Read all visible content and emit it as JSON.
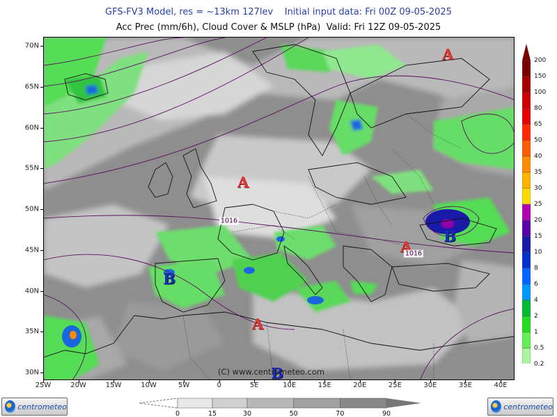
{
  "titles": {
    "line1": "GFS-FV3 Model, res = ~13km 127lev    Initial input data: Fri 00Z 09-05-2025",
    "line2": "Acc Prec (mm/6h), Cloud Cover & MSLP (hPa)  Valid: Fri 12Z 09-05-2025"
  },
  "axes": {
    "latitudes": [
      "70N",
      "65N",
      "60N",
      "55N",
      "50N",
      "45N",
      "40N",
      "35N",
      "30N"
    ],
    "longitudes": [
      "25W",
      "20W",
      "15W",
      "10W",
      "5W",
      "0",
      "5E",
      "10E",
      "15E",
      "20E",
      "25E",
      "30E",
      "35E",
      "40E"
    ]
  },
  "pressure_centers": [
    {
      "label": "A",
      "type": "high",
      "name": "high-pressure-north-russia"
    },
    {
      "label": "A",
      "type": "high",
      "name": "high-pressure-north-sea"
    },
    {
      "label": "A",
      "type": "high",
      "name": "high-pressure-balkans"
    },
    {
      "label": "A",
      "type": "high",
      "name": "high-pressure-mediterranean"
    },
    {
      "label": "B",
      "type": "low",
      "name": "low-pressure-black-sea"
    },
    {
      "label": "B",
      "type": "low",
      "name": "low-pressure-iberia"
    },
    {
      "label": "B",
      "type": "low",
      "name": "low-pressure-north-africa"
    }
  ],
  "isobar_labels": [
    "1016",
    "1016"
  ],
  "copyright": "(C) www.centrometeo.com",
  "precip_legend": {
    "unit": "mm/6h",
    "levels": [
      "200",
      "150",
      "100",
      "80",
      "65",
      "50",
      "40",
      "35",
      "30",
      "25",
      "20",
      "15",
      "10",
      "8",
      "6",
      "4",
      "2",
      "1",
      "0.5",
      "0.2"
    ],
    "colors": [
      "#7a0000",
      "#a50000",
      "#cc0000",
      "#e60000",
      "#ff2a00",
      "#ff5c00",
      "#ff8c00",
      "#ffb300",
      "#ffd900",
      "#b000b0",
      "#5a00a8",
      "#1a1aa8",
      "#0033cc",
      "#0066ff",
      "#0099ff",
      "#00bb33",
      "#22dd22",
      "#66ee55",
      "#aaf59c",
      "#e0fcd6"
    ]
  },
  "cloud_legend": {
    "unit": "%",
    "labels": [
      "0",
      "15",
      "30",
      "50",
      "70",
      "90"
    ],
    "colors": [
      "#e8e8e8",
      "#d0d0d0",
      "#b8b8b8",
      "#a0a0a0",
      "#888888"
    ]
  },
  "logos": {
    "text": "centrometeo"
  }
}
